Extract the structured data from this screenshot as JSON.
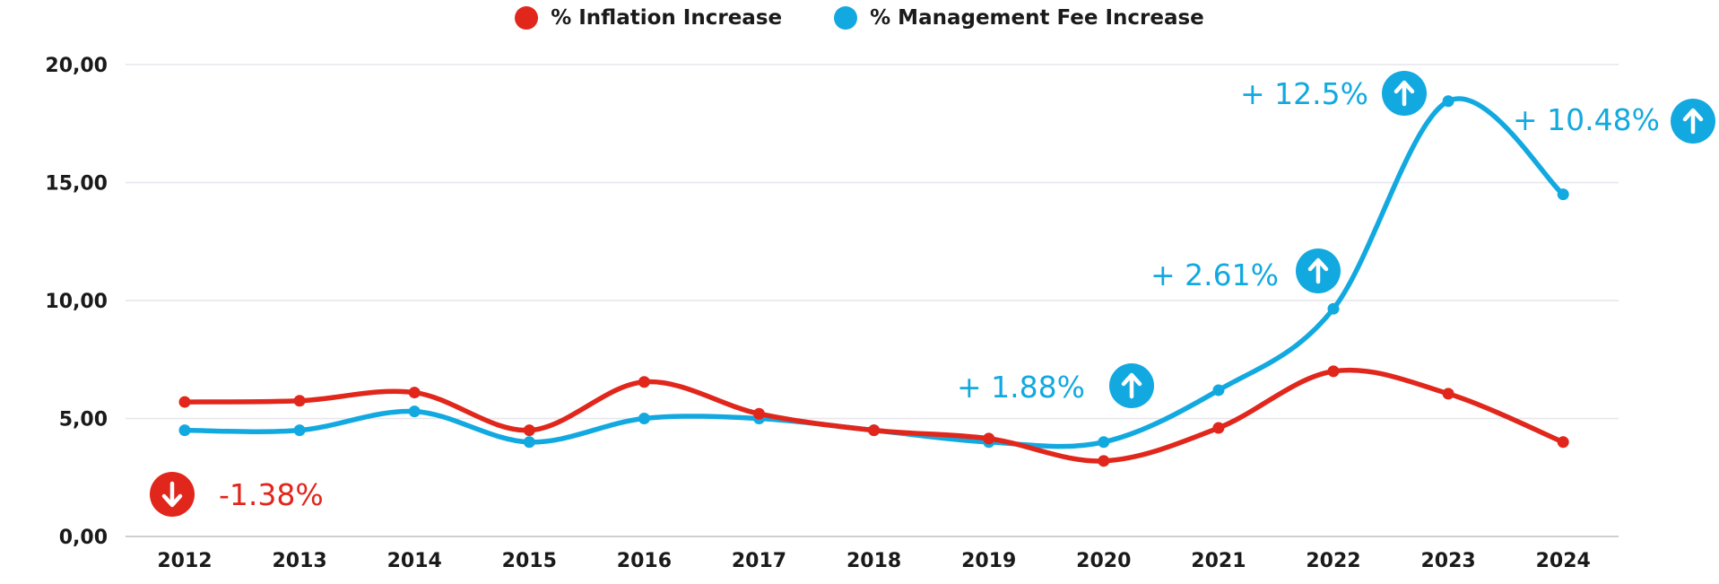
{
  "chart_data": {
    "type": "line",
    "categories": [
      "2012",
      "2013",
      "2014",
      "2015",
      "2016",
      "2017",
      "2018",
      "2019",
      "2020",
      "2021",
      "2022",
      "2023",
      "2024"
    ],
    "series": [
      {
        "name": "% Inflation Increase",
        "color": "#e1261c",
        "values": [
          5.7,
          5.75,
          6.1,
          4.5,
          6.55,
          5.2,
          4.5,
          4.15,
          3.2,
          4.6,
          7.0,
          6.05,
          4.0
        ]
      },
      {
        "name": "% Management Fee Increase",
        "color": "#12a9e0",
        "values": [
          4.5,
          4.5,
          5.3,
          4.0,
          5.0,
          5.0,
          4.5,
          4.0,
          4.0,
          6.2,
          9.65,
          18.45,
          14.5
        ]
      }
    ],
    "yticks": [
      "0,00",
      "5,00",
      "10,00",
      "15,00",
      "20,00"
    ],
    "ylim": [
      0,
      20
    ],
    "grid": true,
    "legend_position": "top-center",
    "title": "",
    "xlabel": "",
    "ylabel": "",
    "annotations": [
      {
        "text": "-1.38%",
        "color": "#e1261c",
        "arrow": "down",
        "series": 0,
        "category": "2012"
      },
      {
        "text": "+ 1.88%",
        "color": "#12a9e0",
        "arrow": "up",
        "series": 1,
        "category": "2020"
      },
      {
        "text": "+ 2.61%",
        "color": "#12a9e0",
        "arrow": "up",
        "series": 1,
        "category": "2022"
      },
      {
        "text": "+ 12.5%",
        "color": "#12a9e0",
        "arrow": "up",
        "series": 1,
        "category": "2023"
      },
      {
        "text": "+ 10.48%",
        "color": "#12a9e0",
        "arrow": "up",
        "series": 1,
        "category": "2024"
      }
    ]
  }
}
